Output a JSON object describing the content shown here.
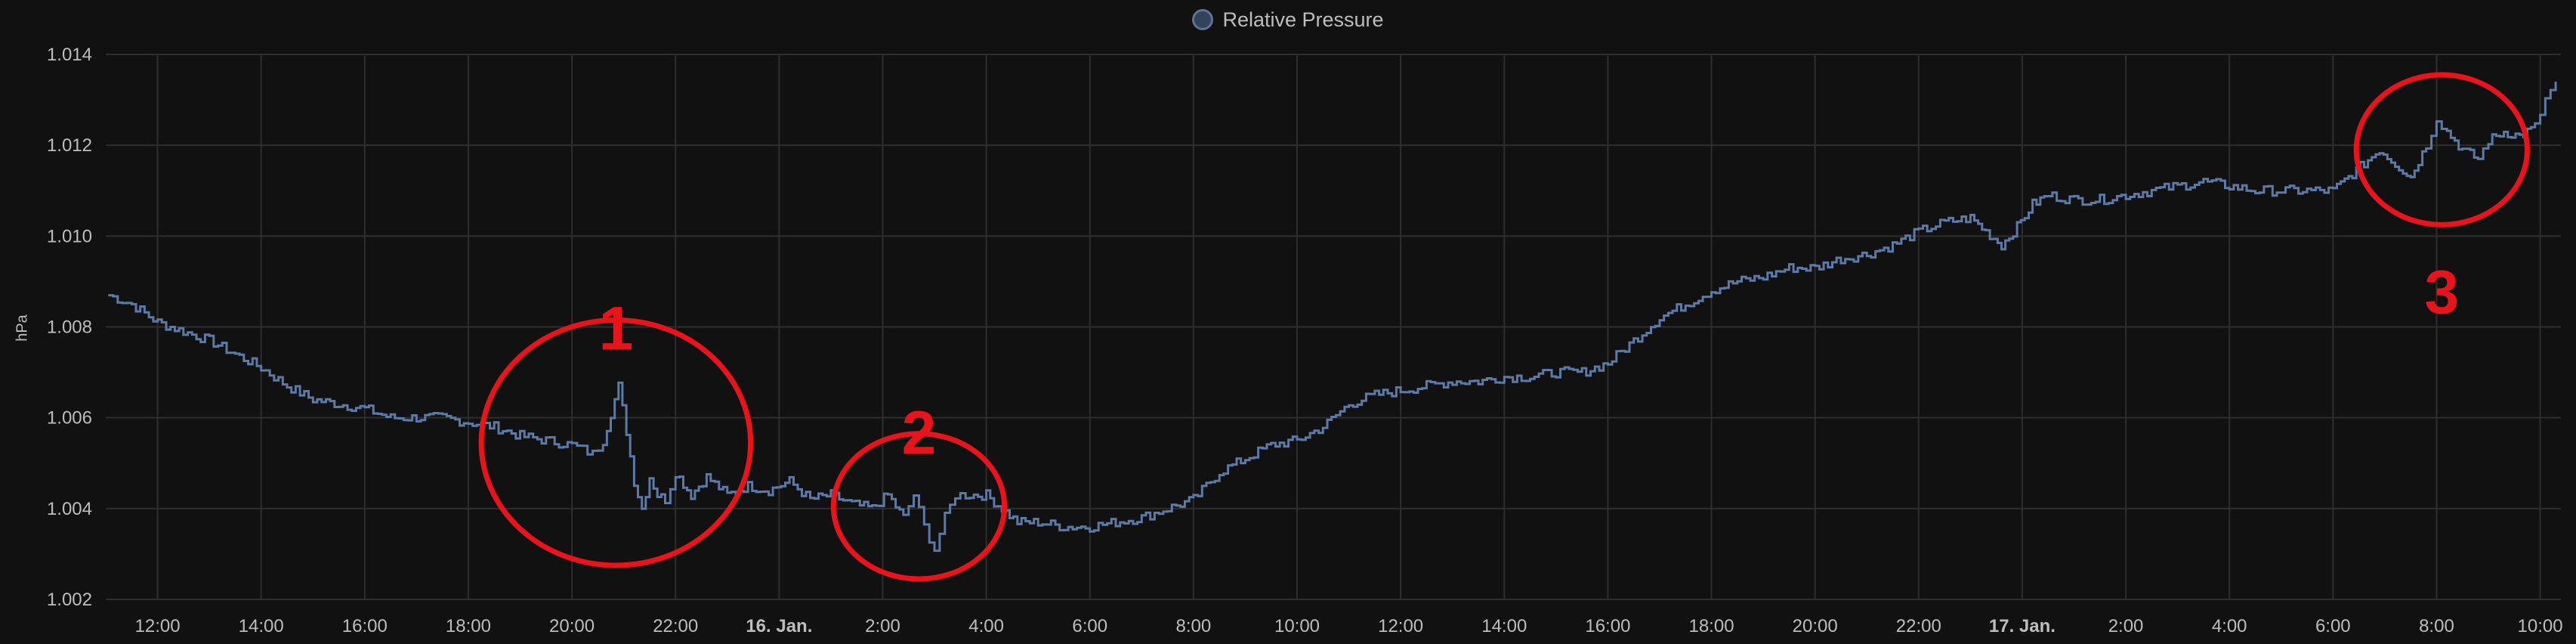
{
  "chart_data": {
    "type": "line",
    "ylabel": "hPa",
    "legend": {
      "label": "Relative Pressure",
      "position": "top-center"
    },
    "series_color": "#5b7aa8",
    "grid": true,
    "ylim": [
      1.002,
      1.014
    ],
    "yticks": [
      "1.002",
      "1.004",
      "1.006",
      "1.008",
      "1.010",
      "1.012",
      "1.014"
    ],
    "x_range_hours": [
      -1.0,
      46.4
    ],
    "xticks": [
      {
        "label": "12:00",
        "hour": 0,
        "bold": false
      },
      {
        "label": "14:00",
        "hour": 2,
        "bold": false
      },
      {
        "label": "16:00",
        "hour": 4,
        "bold": false
      },
      {
        "label": "18:00",
        "hour": 6,
        "bold": false
      },
      {
        "label": "20:00",
        "hour": 8,
        "bold": false
      },
      {
        "label": "22:00",
        "hour": 10,
        "bold": false
      },
      {
        "label": "16. Jan.",
        "hour": 12,
        "bold": true
      },
      {
        "label": "2:00",
        "hour": 14,
        "bold": false
      },
      {
        "label": "4:00",
        "hour": 16,
        "bold": false
      },
      {
        "label": "6:00",
        "hour": 18,
        "bold": false
      },
      {
        "label": "8:00",
        "hour": 20,
        "bold": false
      },
      {
        "label": "10:00",
        "hour": 22,
        "bold": false
      },
      {
        "label": "12:00",
        "hour": 24,
        "bold": false
      },
      {
        "label": "14:00",
        "hour": 26,
        "bold": false
      },
      {
        "label": "16:00",
        "hour": 28,
        "bold": false
      },
      {
        "label": "18:00",
        "hour": 30,
        "bold": false
      },
      {
        "label": "20:00",
        "hour": 32,
        "bold": false
      },
      {
        "label": "22:00",
        "hour": 34,
        "bold": false
      },
      {
        "label": "17. Jan.",
        "hour": 36,
        "bold": true
      },
      {
        "label": "2:00",
        "hour": 38,
        "bold": false
      },
      {
        "label": "4:00",
        "hour": 40,
        "bold": false
      },
      {
        "label": "6:00",
        "hour": 42,
        "bold": false
      },
      {
        "label": "8:00",
        "hour": 44,
        "bold": false
      },
      {
        "label": "10:00",
        "hour": 46,
        "bold": false
      }
    ],
    "series": [
      {
        "name": "Relative Pressure",
        "x": [
          -0.95,
          -0.5,
          0,
          0.5,
          1,
          1.5,
          2,
          2.5,
          3,
          3.5,
          4,
          4.5,
          5,
          5.5,
          6,
          6.5,
          7,
          7.5,
          8,
          8.2,
          8.4,
          8.6,
          8.75,
          8.9,
          9.05,
          9.2,
          9.35,
          9.5,
          9.65,
          9.8,
          10,
          10.3,
          10.6,
          11,
          11.4,
          11.8,
          12.2,
          12.6,
          13,
          13.4,
          13.8,
          14.1,
          14.4,
          14.6,
          14.8,
          15.0,
          15.2,
          15.4,
          15.6,
          16,
          16.3,
          16.6,
          17,
          17.5,
          18,
          18.5,
          19,
          19.5,
          20,
          20.5,
          21,
          21.5,
          22,
          22.5,
          23,
          23.5,
          24,
          24.5,
          25,
          25.5,
          26,
          26.5,
          27,
          27.5,
          28,
          28.5,
          29,
          29.5,
          30,
          30.5,
          31,
          31.5,
          32,
          32.5,
          33,
          33.5,
          34,
          34.5,
          35,
          35.3,
          35.6,
          35.9,
          36.2,
          36.5,
          37,
          37.5,
          38,
          38.5,
          39,
          39.5,
          40,
          40.5,
          41,
          41.5,
          42,
          42.3,
          42.6,
          42.9,
          43.2,
          43.5,
          43.8,
          44.0,
          44.2,
          44.5,
          44.8,
          45.0,
          45.3,
          45.6,
          45.9,
          46.1,
          46.3
        ],
        "y": [
          1.0087,
          1.0085,
          1.0081,
          1.0079,
          1.0077,
          1.0074,
          1.0071,
          1.0067,
          1.0064,
          1.0063,
          1.0062,
          1.006,
          1.006,
          1.006,
          1.0059,
          1.0058,
          1.0056,
          1.0055,
          1.0054,
          1.0053,
          1.0052,
          1.0055,
          1.0061,
          1.0067,
          1.0057,
          1.0046,
          1.004,
          1.0047,
          1.0043,
          1.0042,
          1.0048,
          1.0043,
          1.0047,
          1.0043,
          1.0045,
          1.0044,
          1.0046,
          1.0042,
          1.0043,
          1.0041,
          1.004,
          1.0043,
          1.0038,
          1.0043,
          1.0036,
          1.0031,
          1.0038,
          1.0043,
          1.0043,
          1.0043,
          1.004,
          1.0037,
          1.0037,
          1.0036,
          1.0036,
          1.0037,
          1.0038,
          1.004,
          1.0042,
          1.0048,
          1.0051,
          1.0054,
          1.0055,
          1.0058,
          1.0063,
          1.0065,
          1.0066,
          1.0067,
          1.0068,
          1.0068,
          1.0069,
          1.0069,
          1.007,
          1.007,
          1.0072,
          1.0077,
          1.0082,
          1.0085,
          1.0088,
          1.009,
          1.0091,
          1.0093,
          1.0093,
          1.0095,
          1.0096,
          1.0098,
          1.0101,
          1.0103,
          1.0104,
          1.0101,
          1.0098,
          1.0102,
          1.0107,
          1.0109,
          1.0108,
          1.0108,
          1.0109,
          1.011,
          1.0111,
          1.0112,
          1.0111,
          1.011,
          1.011,
          1.011,
          1.011,
          1.0113,
          1.0116,
          1.0119,
          1.0116,
          1.0113,
          1.012,
          1.0126,
          1.0123,
          1.0119,
          1.0117,
          1.0121,
          1.0123,
          1.0122,
          1.0124,
          1.013,
          1.0134
        ]
      }
    ],
    "annotations": [
      {
        "label": "1",
        "cx_hour": 8.85,
        "cy": 1.00545,
        "rx_hours": 2.6,
        "ry": 0.0027,
        "label_y": 1.0075
      },
      {
        "label": "2",
        "cx_hour": 14.7,
        "cy": 1.00405,
        "rx_hours": 1.65,
        "ry": 0.0016,
        "label_y": 1.0052
      },
      {
        "label": "3",
        "cx_hour": 44.1,
        "cy": 1.0119,
        "rx_hours": 1.65,
        "ry": 0.00165,
        "label_y": 1.0083
      }
    ],
    "annotation_color": "#e8141c"
  }
}
